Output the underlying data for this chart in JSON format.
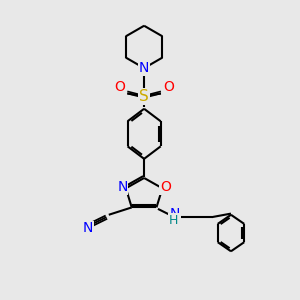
{
  "bg_color": "#e8e8e8",
  "atom_colors": {
    "C": "#000000",
    "N": "#0000ff",
    "O": "#ff0000",
    "S": "#ccaa00",
    "H": "#008888"
  },
  "bond_color": "#000000",
  "bond_width": 1.5,
  "fig_width": 3.0,
  "fig_height": 3.0,
  "dpi": 100
}
